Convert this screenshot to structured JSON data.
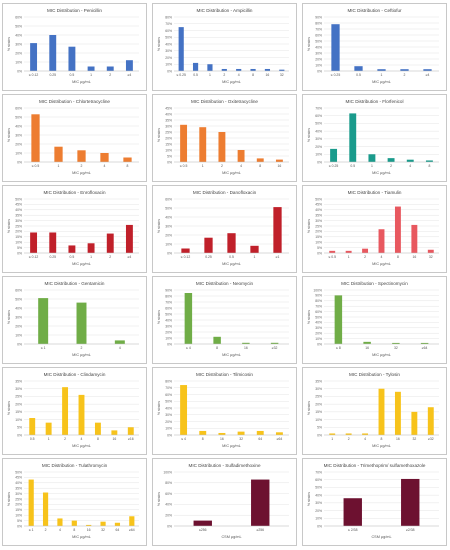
{
  "charts": [
    {
      "title": "MIC Distribution - Penicillin",
      "color": "#4472c4",
      "xlabel": "MIC μg/mL",
      "ylabel": "% strains",
      "categories": [
        "≤ 0.12",
        "0.25",
        "0.5",
        "1",
        "2",
        "≥4"
      ],
      "values": [
        31,
        40,
        27,
        5,
        5,
        12
      ],
      "yticks": [
        "0%",
        "10%",
        "20%",
        "30%",
        "40%",
        "50%",
        "60%"
      ],
      "ymax": 60
    },
    {
      "title": "MIC Distribution - Ampicillin",
      "color": "#4472c4",
      "xlabel": "MIC μg/mL",
      "ylabel": "% strains",
      "categories": [
        "≤ 0.25",
        "0.5",
        "1",
        "2",
        "4",
        "8",
        "16",
        "32"
      ],
      "values": [
        65,
        12,
        10,
        3,
        3,
        3,
        3,
        2
      ],
      "yticks": [
        "0%",
        "10%",
        "20%",
        "30%",
        "40%",
        "50%",
        "60%",
        "70%",
        "80%"
      ],
      "ymax": 80
    },
    {
      "title": "MIC Distribution - Ceftiofur",
      "color": "#4472c4",
      "xlabel": "MIC μg/mL",
      "ylabel": "% strains",
      "categories": [
        "≤ 0.25",
        "0.5",
        "1",
        "2",
        "≥4"
      ],
      "values": [
        78,
        8,
        3,
        3,
        3
      ],
      "yticks": [
        "0%",
        "10%",
        "20%",
        "30%",
        "40%",
        "50%",
        "60%",
        "70%",
        "80%",
        "90%"
      ],
      "ymax": 90
    },
    {
      "title": "MIC Distribution - Chlortetracycline",
      "color": "#ed7d31",
      "xlabel": "MIC μg/mL",
      "ylabel": "% strains",
      "categories": [
        "≤ 0.5",
        "1",
        "2",
        "4",
        "8"
      ],
      "values": [
        53,
        17,
        13,
        10,
        5
      ],
      "yticks": [
        "0%",
        "10%",
        "20%",
        "30%",
        "40%",
        "50%",
        "60%"
      ],
      "ymax": 60
    },
    {
      "title": "MIC Distribution - Oxitetracycline",
      "color": "#ed7d31",
      "xlabel": "MIC μg/mL",
      "ylabel": "% strains",
      "categories": [
        "≤ 0.5",
        "1",
        "2",
        "4",
        "8",
        "16"
      ],
      "values": [
        31,
        29,
        25,
        10,
        3,
        2
      ],
      "yticks": [
        "0%",
        "5%",
        "10%",
        "15%",
        "20%",
        "25%",
        "30%",
        "35%",
        "40%",
        "45%"
      ],
      "ymax": 45
    },
    {
      "title": "MIC Distribution - Florfenicol",
      "color": "#1a9b8c",
      "xlabel": "MIC μg/mL",
      "ylabel": "% strains",
      "categories": [
        "≤ 0.25",
        "0.5",
        "1",
        "2",
        "4",
        "8"
      ],
      "values": [
        17,
        63,
        10,
        5,
        3,
        2
      ],
      "yticks": [
        "0%",
        "10%",
        "20%",
        "30%",
        "40%",
        "50%",
        "60%",
        "70%"
      ],
      "ymax": 70
    },
    {
      "title": "MIC Distribution - Enrofloxacin",
      "color": "#c0202a",
      "xlabel": "MIC μg/mL",
      "ylabel": "% strains",
      "categories": [
        "≤ 0.12",
        "0.25",
        "0.5",
        "1",
        "2",
        "≥4"
      ],
      "values": [
        19,
        19,
        7,
        9,
        18,
        26
      ],
      "yticks": [
        "0%",
        "5%",
        "10%",
        "15%",
        "20%",
        "25%",
        "30%",
        "35%",
        "40%",
        "45%",
        "50%"
      ],
      "ymax": 50
    },
    {
      "title": "MIC Distribution - Danofloxacin",
      "color": "#c0202a",
      "xlabel": "MIC μg/mL",
      "ylabel": "% strains",
      "categories": [
        "≤ 0.12",
        "0.25",
        "0.5",
        "1",
        "≥1"
      ],
      "values": [
        5,
        17,
        22,
        8,
        51
      ],
      "yticks": [
        "0%",
        "10%",
        "20%",
        "30%",
        "40%",
        "50%",
        "60%"
      ],
      "ymax": 60
    },
    {
      "title": "MIC Distribution - Tiamulin",
      "color": "#e8585f",
      "xlabel": "MIC μg/mL",
      "ylabel": "% strains",
      "categories": [
        "≤ 0.5",
        "1",
        "2",
        "4",
        "8",
        "16",
        "32"
      ],
      "values": [
        2,
        2,
        4,
        22,
        43,
        26,
        3
      ],
      "yticks": [
        "0%",
        "5%",
        "10%",
        "15%",
        "20%",
        "25%",
        "30%",
        "35%",
        "40%",
        "45%",
        "50%"
      ],
      "ymax": 50
    },
    {
      "title": "MIC Distribution - Gentamicin",
      "color": "#70ad47",
      "xlabel": "MIC μg/mL",
      "ylabel": "% strains",
      "categories": [
        "≤ 1",
        "2",
        "4"
      ],
      "values": [
        51,
        46,
        4
      ],
      "yticks": [
        "0%",
        "10%",
        "20%",
        "30%",
        "40%",
        "50%",
        "60%"
      ],
      "ymax": 60
    },
    {
      "title": "MIC Distribution - Neomycin",
      "color": "#70ad47",
      "xlabel": "MIC μg/mL",
      "ylabel": "% strains",
      "categories": [
        "≤ 4",
        "8",
        "16",
        "≥32"
      ],
      "values": [
        85,
        12,
        2,
        2
      ],
      "yticks": [
        "0%",
        "10%",
        "20%",
        "30%",
        "40%",
        "50%",
        "60%",
        "70%",
        "80%",
        "90%"
      ],
      "ymax": 90
    },
    {
      "title": "MIC Distribution - Spectinomycin",
      "color": "#70ad47",
      "xlabel": "MIC μg/mL",
      "ylabel": "% strains",
      "categories": [
        "≤ 8",
        "16",
        "32",
        "≥64"
      ],
      "values": [
        90,
        4,
        2,
        2
      ],
      "yticks": [
        "0%",
        "10%",
        "20%",
        "30%",
        "40%",
        "50%",
        "60%",
        "70%",
        "80%",
        "90%",
        "100%"
      ],
      "ymax": 100
    },
    {
      "title": "MIC Distribution - Clindamycin",
      "color": "#f7c31b",
      "xlabel": "MIC μg/mL",
      "ylabel": "% strains",
      "categories": [
        "0.5",
        "1",
        "2",
        "4",
        "8",
        "16",
        "≥16"
      ],
      "values": [
        11,
        8,
        31,
        26,
        8,
        3,
        5
      ],
      "yticks": [
        "0%",
        "5%",
        "10%",
        "15%",
        "20%",
        "25%",
        "30%",
        "35%"
      ],
      "ymax": 35
    },
    {
      "title": "MIC Distribution - Tilmicosin",
      "color": "#f7c31b",
      "xlabel": "MIC μg/mL",
      "ylabel": "% strains",
      "categories": [
        "≤ 4",
        "8",
        "16",
        "32",
        "64",
        "≥64"
      ],
      "values": [
        74,
        6,
        3,
        5,
        6,
        4
      ],
      "yticks": [
        "0%",
        "10%",
        "20%",
        "30%",
        "40%",
        "50%",
        "60%",
        "70%",
        "80%"
      ],
      "ymax": 80
    },
    {
      "title": "MIC Distribution - Tylosin",
      "color": "#f7c31b",
      "xlabel": "MIC μg/mL",
      "ylabel": "% strains",
      "categories": [
        "1",
        "2",
        "4",
        "8",
        "16",
        "32",
        "≥32"
      ],
      "values": [
        1,
        1,
        1,
        30,
        28,
        15,
        18
      ],
      "yticks": [
        "0%",
        "5%",
        "10%",
        "15%",
        "20%",
        "25%",
        "30%",
        "35%"
      ],
      "ymax": 35
    },
    {
      "title": "MIC Distribution - Tulathromycin",
      "color": "#f7c31b",
      "xlabel": "MIC μg/mL",
      "ylabel": "% strains",
      "categories": [
        "≤ 1",
        "2",
        "4",
        "8",
        "16",
        "32",
        "64",
        "≥64"
      ],
      "values": [
        43,
        31,
        7,
        5,
        1,
        4,
        3,
        9
      ],
      "yticks": [
        "0%",
        "5%",
        "10%",
        "15%",
        "20%",
        "25%",
        "30%",
        "35%",
        "40%",
        "45%",
        "50%"
      ],
      "ymax": 50
    },
    {
      "title": "MIC Distribution - Sulfadimethoxine",
      "color": "#6d1130",
      "xlabel": "CSM μg/mL",
      "ylabel": "% strains",
      "categories": [
        "≤256",
        "≥256"
      ],
      "values": [
        10,
        86
      ],
      "yticks": [
        "0%",
        "20%",
        "40%",
        "60%",
        "80%",
        "100%"
      ],
      "ymax": 100
    },
    {
      "title": "MIC Distribution - Trimethoprim/ sulfamethoxazole",
      "color": "#6d1130",
      "xlabel": "CSM μg/mL",
      "ylabel": "% strains",
      "categories": [
        "≤ 2/38",
        "≥2/38"
      ],
      "values": [
        36,
        61
      ],
      "yticks": [
        "0%",
        "10%",
        "20%",
        "30%",
        "40%",
        "50%",
        "60%",
        "70%"
      ],
      "ymax": 70
    }
  ]
}
